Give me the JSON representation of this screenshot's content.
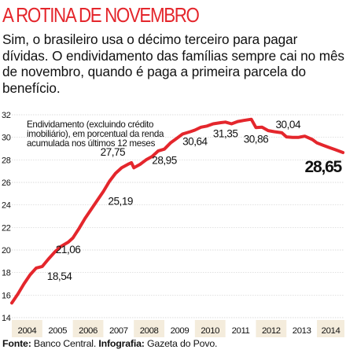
{
  "header": {
    "title": "A ROTINA DE NOVEMBRO",
    "subtitle": "Sim, o brasileiro usa o décimo terceiro para pagar dívidas. O endividamento das famílias sempre cai no mês de novembro, quando é paga a primeira parcela do benefício."
  },
  "footer": {
    "source_label": "Fonte:",
    "source_value": "Banco Central.",
    "credit_label": "Infografia:",
    "credit_value": "Gazeta do Povo."
  },
  "colors": {
    "title": "#e4262c",
    "line": "#e4262c",
    "grid": "#d0d0d0",
    "year_band": "#f4ecdc",
    "text": "#111111"
  },
  "chart_data": {
    "type": "line",
    "title": "",
    "annotation": "Endividamento (excluindo crédito imobiliário), em porcentual da renda acumulada nos últimos 12 meses",
    "xlabel": "",
    "ylabel": "",
    "ylim": [
      14,
      32
    ],
    "yticks": [
      14,
      16,
      18,
      20,
      22,
      24,
      26,
      28,
      30,
      32
    ],
    "xlim": [
      2004.0,
      2014.9
    ],
    "year_labels": [
      "2004",
      "2005",
      "2006",
      "2007",
      "2008",
      "2009",
      "2010",
      "2011",
      "2012",
      "2013",
      "2014"
    ],
    "grid": true,
    "series": [
      {
        "x": [
          2004.0,
          2004.2,
          2004.4,
          2004.6,
          2004.8,
          2005.0,
          2005.2,
          2005.4,
          2005.6,
          2005.85,
          2006.0,
          2006.2,
          2006.4,
          2006.6,
          2006.8,
          2007.0,
          2007.2,
          2007.4,
          2007.6,
          2007.8,
          2007.92,
          2008.0,
          2008.2,
          2008.4,
          2008.6,
          2008.8,
          2009.0,
          2009.2,
          2009.4,
          2009.6,
          2009.85,
          2010.0,
          2010.2,
          2010.4,
          2010.6,
          2010.85,
          2011.0,
          2011.2,
          2011.4,
          2011.6,
          2011.85,
          2012.0,
          2012.2,
          2012.4,
          2012.6,
          2012.85,
          2013.0,
          2013.2,
          2013.4,
          2013.6,
          2013.85,
          2014.0,
          2014.2,
          2014.4,
          2014.6,
          2014.85
        ],
        "values": [
          15.3,
          16.1,
          17.0,
          17.8,
          18.4,
          18.54,
          19.2,
          19.8,
          20.3,
          20.7,
          21.06,
          21.9,
          22.8,
          23.6,
          24.4,
          25.19,
          26.1,
          26.8,
          27.3,
          27.6,
          27.75,
          27.3,
          27.6,
          28.0,
          28.3,
          28.8,
          28.95,
          29.5,
          29.9,
          30.3,
          30.5,
          30.64,
          30.9,
          31.0,
          31.2,
          31.3,
          31.35,
          31.2,
          31.4,
          31.5,
          31.6,
          30.86,
          30.9,
          30.6,
          30.5,
          30.4,
          30.04,
          30.0,
          30.0,
          30.1,
          29.8,
          29.5,
          29.3,
          29.1,
          28.9,
          28.65
        ]
      }
    ],
    "data_labels": [
      {
        "label": "18,54",
        "x": 2005.0,
        "y": 18.54,
        "pos": "below-right"
      },
      {
        "label": "21,06",
        "x": 2006.0,
        "y": 21.06,
        "pos": "below-left"
      },
      {
        "label": "25,19",
        "x": 2007.0,
        "y": 25.19,
        "pos": "below-right"
      },
      {
        "label": "27,75",
        "x": 2007.92,
        "y": 27.75,
        "pos": "above-left"
      },
      {
        "label": "28,95",
        "x": 2009.0,
        "y": 28.95,
        "pos": "below"
      },
      {
        "label": "30,64",
        "x": 2010.0,
        "y": 30.64,
        "pos": "below"
      },
      {
        "label": "31,35",
        "x": 2011.0,
        "y": 31.35,
        "pos": "below"
      },
      {
        "label": "30,86",
        "x": 2012.0,
        "y": 30.86,
        "pos": "below"
      },
      {
        "label": "30,04",
        "x": 2013.0,
        "y": 30.04,
        "pos": "above-right"
      },
      {
        "label": "28,65",
        "x": 2014.85,
        "y": 28.65,
        "pos": "below-large"
      }
    ]
  }
}
